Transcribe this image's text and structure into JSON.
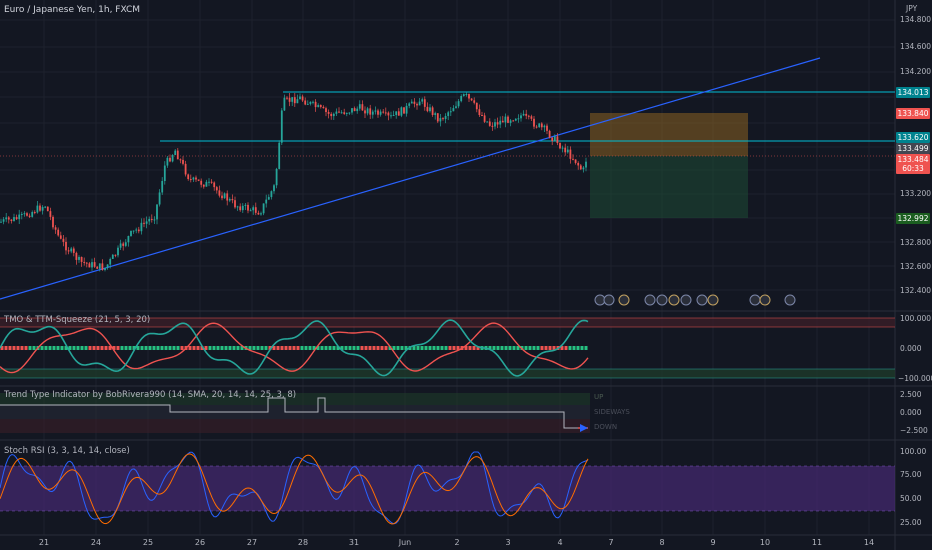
{
  "header": {
    "title": "Euro / Japanese Yen, 1h, FXCM",
    "currency": "JPY"
  },
  "price_axis": {
    "ticks": [
      "134.800",
      "134.600",
      "134.200",
      "133.200",
      "132.800",
      "132.600",
      "132.400"
    ],
    "tags": {
      "upper_line": "134.013",
      "target": "133.840",
      "entry": "133.620",
      "current": "133.499",
      "bid": "133.484",
      "countdown": "60:33",
      "stop": "132.992"
    }
  },
  "indicators": {
    "tmo": {
      "title": "TMO & TTM-Squeeze (21, 5, 3, 20)",
      "ticks": [
        "100.000",
        "0.000",
        "−100.000"
      ]
    },
    "trend": {
      "title": "Trend Type Indicator by BobRivera990 (14, SMA, 20, 14, 14, 25, 3, 8)",
      "ticks": [
        "2.500",
        "0.000",
        "−2.500"
      ],
      "legend": [
        "UP",
        "SIDEWAYS",
        "DOWN"
      ]
    },
    "stoch": {
      "title": "Stoch RSI (3, 3, 14, 14, close)",
      "ticks": [
        "100.00",
        "75.00",
        "50.00",
        "25.00"
      ]
    }
  },
  "time_axis": {
    "labels": [
      "21",
      "24",
      "25",
      "26",
      "27",
      "28",
      "31",
      "Jun",
      "2",
      "3",
      "4",
      "7",
      "8",
      "9",
      "10",
      "11",
      "14"
    ]
  },
  "colors": {
    "background": "#131722",
    "bull": "#26a69a",
    "bear": "#ef5350",
    "trendline": "#2962ff",
    "level": "#00bcd4",
    "stoch_band": "#4a2a7a"
  }
}
